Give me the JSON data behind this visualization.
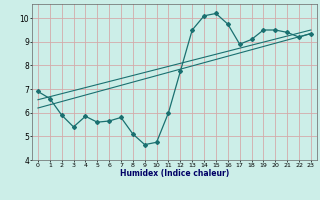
{
  "xlabel": "Humidex (Indice chaleur)",
  "ylabel": "",
  "background_color": "#cceee8",
  "grid_color": "#d4aaaa",
  "line_color": "#1a7070",
  "xlim": [
    -0.5,
    23.5
  ],
  "ylim": [
    4,
    10.6
  ],
  "yticks": [
    4,
    5,
    6,
    7,
    8,
    9,
    10
  ],
  "xticks": [
    0,
    1,
    2,
    3,
    4,
    5,
    6,
    7,
    8,
    9,
    10,
    11,
    12,
    13,
    14,
    15,
    16,
    17,
    18,
    19,
    20,
    21,
    22,
    23
  ],
  "line1_x": [
    0,
    1,
    2,
    3,
    4,
    5,
    6,
    7,
    8,
    9,
    10,
    11,
    12,
    13,
    14,
    15,
    16,
    17,
    18,
    19,
    20,
    21,
    22,
    23
  ],
  "line1_y": [
    6.9,
    6.6,
    5.9,
    5.4,
    5.85,
    5.6,
    5.65,
    5.8,
    5.1,
    4.65,
    4.75,
    6.0,
    7.75,
    9.5,
    10.1,
    10.2,
    9.75,
    8.9,
    9.1,
    9.5,
    9.5,
    9.4,
    9.2,
    9.35
  ],
  "line2_x": [
    0,
    23
  ],
  "line2_y": [
    6.2,
    9.35
  ],
  "line3_x": [
    0,
    23
  ],
  "line3_y": [
    6.55,
    9.5
  ]
}
